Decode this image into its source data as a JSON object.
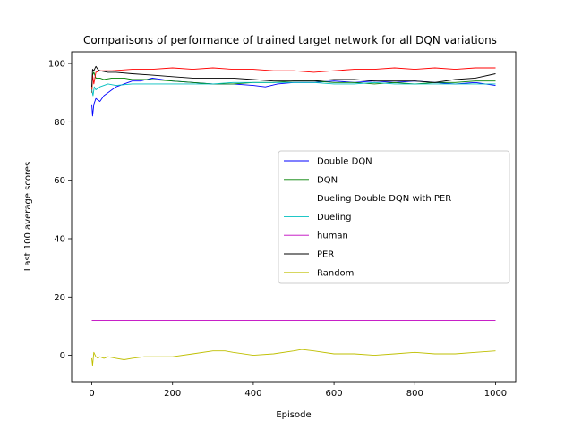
{
  "chart_data": {
    "type": "line",
    "title": "Comparisons of performance of trained target network for all DQN variations",
    "xlabel": "Episode",
    "ylabel": "Last 100 average scores",
    "xlim": [
      -50,
      1050
    ],
    "ylim": [
      -9,
      104
    ],
    "xticks": [
      0,
      200,
      400,
      600,
      800,
      1000
    ],
    "yticks": [
      0,
      20,
      40,
      60,
      80,
      100
    ],
    "grid": false,
    "legend_position": "center-right",
    "series": [
      {
        "name": "Double DQN",
        "color": "#0000ff",
        "x": [
          0,
          2,
          5,
          10,
          20,
          30,
          40,
          60,
          80,
          100,
          120,
          150,
          200,
          250,
          300,
          350,
          400,
          430,
          460,
          500,
          550,
          600,
          650,
          700,
          750,
          800,
          850,
          900,
          950,
          1000
        ],
        "y": [
          86,
          82,
          86,
          88,
          87,
          89,
          90,
          92,
          93,
          94,
          94,
          95,
          94,
          93.5,
          93,
          93,
          92.5,
          92,
          93,
          93.5,
          93.5,
          94,
          93.5,
          94,
          93.5,
          94,
          93.5,
          93,
          93.5,
          92.5
        ]
      },
      {
        "name": "DQN",
        "color": "#008000",
        "x": [
          0,
          2,
          5,
          10,
          20,
          30,
          50,
          80,
          100,
          150,
          200,
          250,
          300,
          350,
          400,
          450,
          500,
          550,
          600,
          650,
          700,
          750,
          800,
          850,
          900,
          950,
          1000
        ],
        "y": [
          90,
          96,
          97,
          95,
          95,
          94.5,
          95,
          95,
          94.5,
          94.5,
          94,
          93.5,
          93,
          93,
          93.5,
          93.5,
          94,
          94,
          93.5,
          93.5,
          93,
          93.5,
          93,
          93.5,
          93.5,
          94,
          94
        ]
      },
      {
        "name": "Dueling Double DQN with PER",
        "color": "#ff0000",
        "x": [
          0,
          2,
          5,
          10,
          20,
          50,
          100,
          150,
          200,
          250,
          300,
          350,
          400,
          450,
          500,
          550,
          600,
          650,
          700,
          750,
          800,
          850,
          900,
          950,
          1000
        ],
        "y": [
          90,
          96,
          93,
          97,
          97.5,
          97.5,
          98,
          98,
          98.5,
          98,
          98.5,
          98,
          98,
          97.5,
          97.5,
          97,
          97.5,
          98,
          98,
          98.5,
          98,
          98.5,
          98,
          98.5,
          98.5
        ]
      },
      {
        "name": "Dueling",
        "color": "#00bfbf",
        "x": [
          0,
          3,
          6,
          10,
          20,
          40,
          60,
          100,
          150,
          200,
          250,
          300,
          350,
          400,
          450,
          500,
          550,
          600,
          650,
          700,
          750,
          800,
          850,
          900,
          950,
          1000
        ],
        "y": [
          91,
          89,
          92,
          91,
          92,
          93,
          92.5,
          93,
          93,
          93,
          93,
          93,
          93.5,
          93.5,
          93.5,
          93.5,
          93.5,
          93,
          93,
          93.5,
          93,
          93,
          93,
          93,
          93,
          93
        ]
      },
      {
        "name": "human",
        "color": "#bf00bf",
        "x": [
          0,
          1000
        ],
        "y": [
          12,
          12
        ]
      },
      {
        "name": "PER",
        "color": "#000000",
        "x": [
          0,
          2,
          5,
          10,
          15,
          20,
          40,
          60,
          100,
          150,
          200,
          250,
          300,
          350,
          400,
          450,
          500,
          550,
          600,
          650,
          700,
          750,
          800,
          850,
          900,
          950,
          1000
        ],
        "y": [
          92,
          98,
          97.5,
          99,
          98,
          97.5,
          97,
          97,
          96.5,
          96,
          95.5,
          95,
          95,
          95,
          94.5,
          94,
          94,
          94,
          94.5,
          94.5,
          94,
          94,
          94,
          93.5,
          94.5,
          95,
          96.5
        ]
      },
      {
        "name": "Random",
        "color": "#bfbf00",
        "x": [
          0,
          2,
          5,
          10,
          15,
          20,
          30,
          40,
          60,
          80,
          100,
          130,
          160,
          200,
          250,
          300,
          330,
          350,
          400,
          450,
          500,
          520,
          550,
          600,
          650,
          700,
          750,
          800,
          850,
          900,
          950,
          1000
        ],
        "y": [
          -1,
          -3.5,
          1,
          -0.5,
          -1,
          -0.5,
          -1,
          -0.5,
          -1,
          -1.5,
          -1,
          -0.5,
          -0.5,
          -0.5,
          0.5,
          1.5,
          1.5,
          1,
          0,
          0.5,
          1.5,
          2,
          1.5,
          0.5,
          0.5,
          0,
          0.5,
          1,
          0.5,
          0.5,
          1,
          1.5
        ]
      }
    ]
  }
}
